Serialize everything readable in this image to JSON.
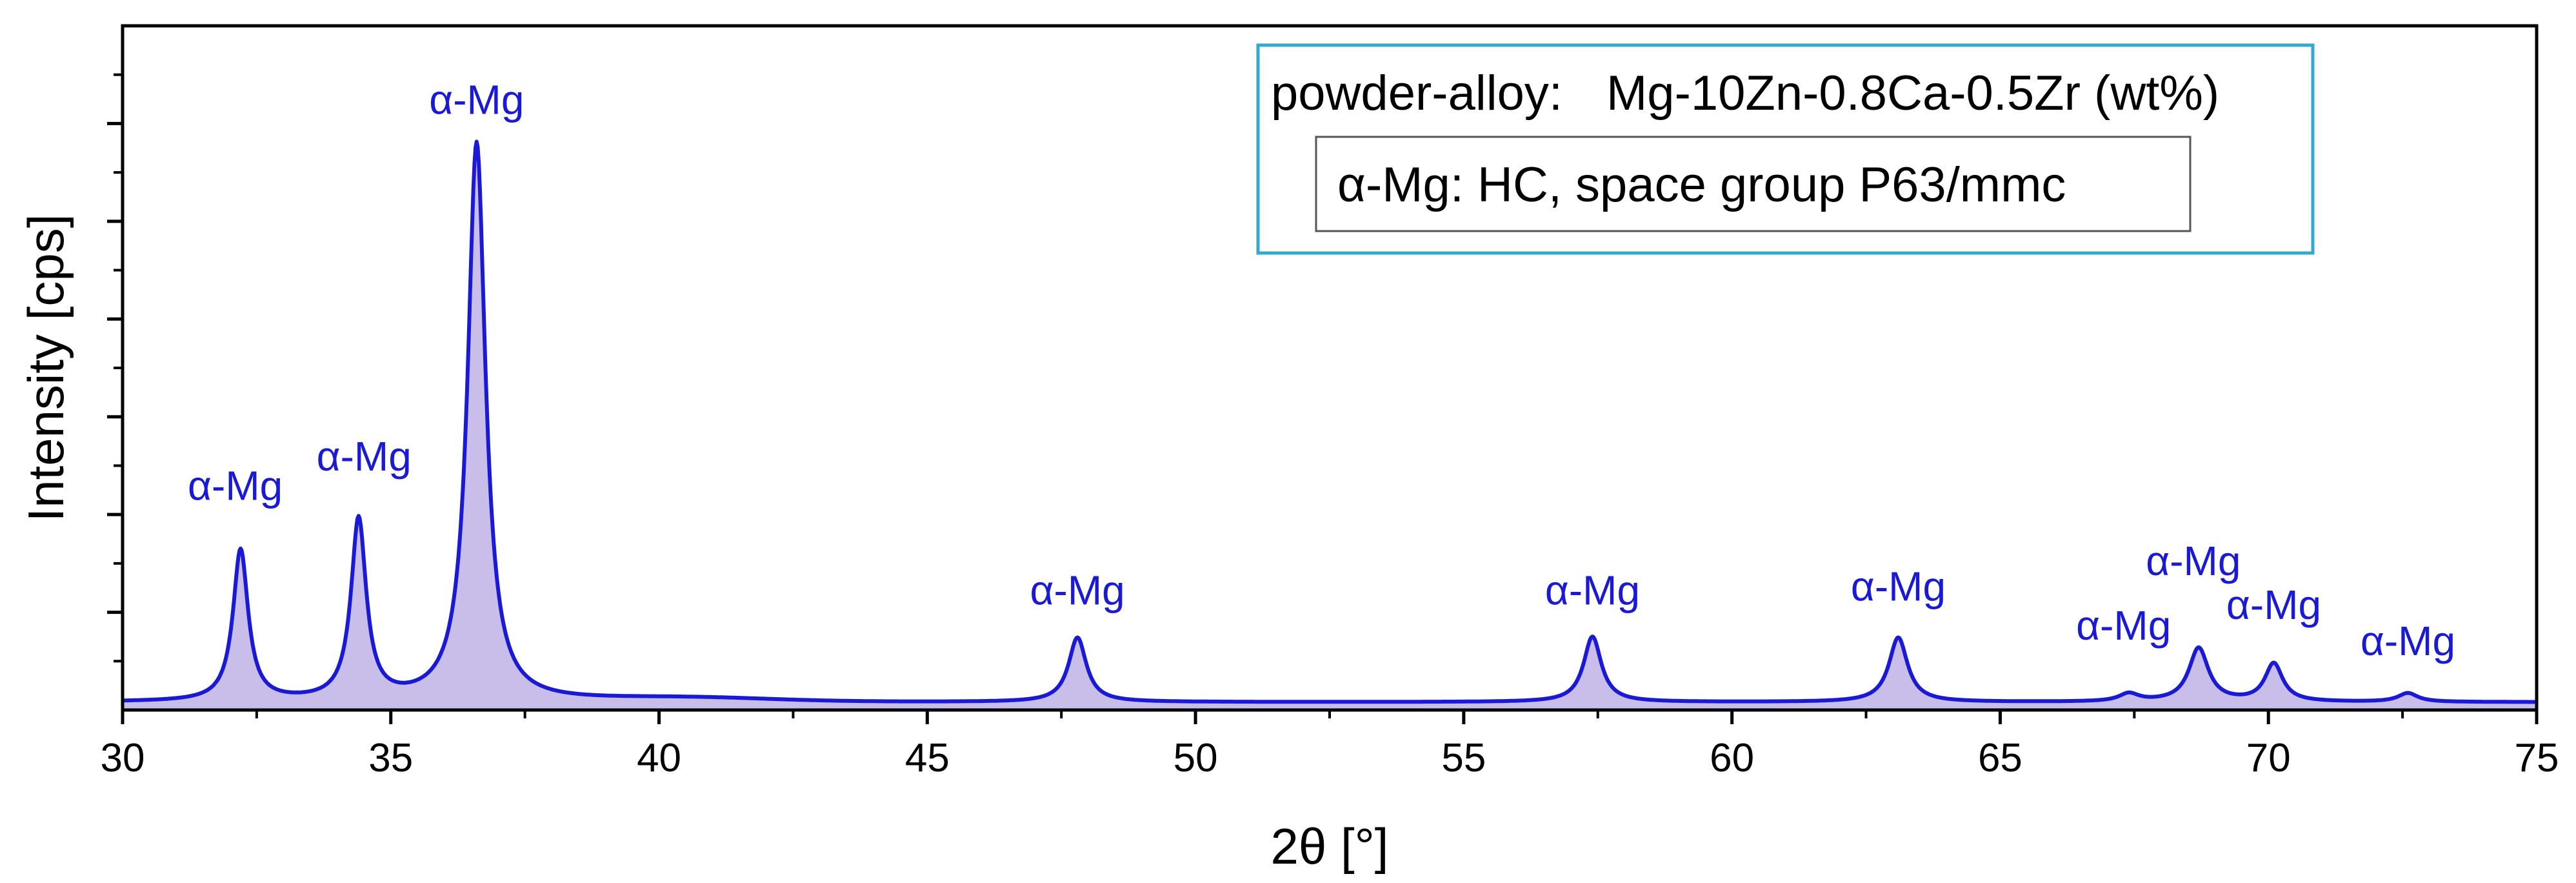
{
  "chart_data": {
    "type": "line",
    "xlabel": "2θ [°]",
    "ylabel": "Intensity [cps]",
    "xlim": [
      30,
      75
    ],
    "ylim": [
      0,
      7.0
    ],
    "x_ticks": [
      "30",
      "35",
      "40",
      "45",
      "50",
      "55",
      "60",
      "65",
      "70",
      "75"
    ],
    "y_tick_labels_shown": false,
    "grid": false,
    "fill": true,
    "colors": {
      "line": "#1a1ad6",
      "fill": "#c9bdea",
      "label": "#1a1ad6",
      "legend_border": "#33a8d0"
    },
    "baseline": 0.08,
    "peaks": [
      {
        "x": 32.2,
        "y": 1.55,
        "width": 0.17
      },
      {
        "x": 34.4,
        "y": 1.85,
        "width": 0.17
      },
      {
        "x": 36.6,
        "y": 5.72,
        "width": 0.2
      },
      {
        "x": 47.8,
        "y": 0.66,
        "width": 0.2
      },
      {
        "x": 57.4,
        "y": 0.67,
        "width": 0.2
      },
      {
        "x": 63.1,
        "y": 0.66,
        "width": 0.21
      },
      {
        "x": 67.4,
        "y": 0.08,
        "width": 0.22
      },
      {
        "x": 68.7,
        "y": 0.55,
        "width": 0.22
      },
      {
        "x": 70.1,
        "y": 0.39,
        "width": 0.2
      },
      {
        "x": 72.6,
        "y": 0.09,
        "width": 0.22
      }
    ],
    "annotations": [
      {
        "text": "α-Mg",
        "x": 32.1,
        "y": 2.15
      },
      {
        "text": "α-Mg",
        "x": 34.5,
        "y": 2.45
      },
      {
        "text": "α-Mg",
        "x": 36.6,
        "y": 6.1
      },
      {
        "text": "α-Mg",
        "x": 47.8,
        "y": 1.08
      },
      {
        "text": "α-Mg",
        "x": 57.4,
        "y": 1.08
      },
      {
        "text": "α-Mg",
        "x": 63.1,
        "y": 1.12
      },
      {
        "text": "α-Mg",
        "x": 67.3,
        "y": 0.72
      },
      {
        "text": "α-Mg",
        "x": 68.6,
        "y": 1.38
      },
      {
        "text": "α-Mg",
        "x": 70.1,
        "y": 0.93
      },
      {
        "text": "α-Mg",
        "x": 72.6,
        "y": 0.56
      }
    ],
    "legend": {
      "position": "top-right",
      "line1_prefix": "powder-alloy:",
      "line1_value": "Mg-10Zn-0.8Ca-0.5Zr (wt%)",
      "line2": "α-Mg: HC, space group P63/mmc"
    }
  }
}
